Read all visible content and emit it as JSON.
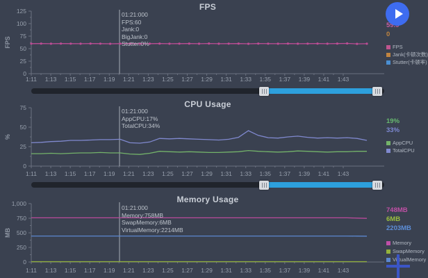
{
  "colors": {
    "background": "#3a4150",
    "title_text": "#c9ced6",
    "axis_text": "#98a0ad",
    "axis_line": "#6b7180",
    "crosshair": "#a7adb6",
    "tooltip_text": "#bfc5cd",
    "scrollbar_track": "#20242c",
    "scrollbar_fill": "#2da0dd",
    "scrollbar_handle": "#d7dadf",
    "play_button": "#3e6cf0",
    "plus_icon": "#3b55c6"
  },
  "icons": {
    "play": "play-icon",
    "plus": "plus-icon"
  },
  "x_tick_labels": [
    "1:11",
    "1:13",
    "1:15",
    "1:17",
    "1:19",
    "1:21",
    "1:23",
    "1:25",
    "1:27",
    "1:29",
    "1:31",
    "1:33",
    "1:35",
    "1:37",
    "1:39",
    "1:41",
    "1:43"
  ],
  "chart_data": [
    {
      "type": "line",
      "title": "FPS",
      "ylabel": "FPS",
      "ylim": [
        0,
        125
      ],
      "y_ticks": [
        {
          "v": 125,
          "label": "125"
        },
        {
          "v": 100,
          "label": "100"
        },
        {
          "v": 75,
          "label": "75"
        },
        {
          "v": 50,
          "label": "50"
        },
        {
          "v": 25,
          "label": "25"
        },
        {
          "v": 0,
          "label": "0"
        }
      ],
      "grid": false,
      "legend_position": "right",
      "tooltip_lines": [
        "01:21:000",
        "FPS:60",
        "Jank:0",
        "BigJank:0",
        "Stutter:0%"
      ],
      "current_values": [
        {
          "text": "59.9",
          "color": "#c75d9f"
        },
        {
          "text": "0",
          "color": "#c08440"
        }
      ],
      "legend": [
        {
          "label": "FPS",
          "color": "#c0558f"
        },
        {
          "label": "Jank(卡顿次数)",
          "color": "#c08440"
        },
        {
          "label": "Stutter(卡顿率)",
          "color": "#4a8fd2"
        }
      ],
      "series": [
        {
          "name": "FPS",
          "color": "#bc4d95",
          "markers": true,
          "values": [
            60,
            60.1,
            59.8,
            60.2,
            60,
            59.9,
            60.1,
            60,
            59.7,
            60,
            60.1,
            59.9,
            60,
            60.2,
            59.8,
            60,
            60.1,
            59.9,
            60.3,
            59.8,
            60,
            60.1,
            59.7,
            60.2,
            60,
            59.9,
            60.1,
            59.8,
            60,
            60.2,
            59.9,
            60.1,
            60.4,
            59.6,
            59.9
          ]
        }
      ]
    },
    {
      "type": "line",
      "title": "CPU Usage",
      "ylabel": "%",
      "ylim": [
        0,
        75
      ],
      "y_ticks": [
        {
          "v": 75,
          "label": "75"
        },
        {
          "v": 50,
          "label": "50"
        },
        {
          "v": 25,
          "label": "25"
        },
        {
          "v": 0,
          "label": "0"
        }
      ],
      "grid": false,
      "legend_position": "right",
      "tooltip_lines": [
        "01:21:000",
        "AppCPU:17%",
        "TotalCPU:34%"
      ],
      "current_values": [
        {
          "text": "19%",
          "color": "#67b96f"
        },
        {
          "text": "33%",
          "color": "#7d88d2"
        }
      ],
      "legend": [
        {
          "label": "AppCPU",
          "color": "#74b36a"
        },
        {
          "label": "TotalCPU",
          "color": "#8089cf"
        }
      ],
      "series": [
        {
          "name": "AppCPU",
          "color": "#74b36a",
          "markers": false,
          "values": [
            16,
            16,
            16.5,
            16,
            16.5,
            17,
            17,
            17.5,
            17,
            17,
            15.5,
            15,
            16.5,
            19,
            18.5,
            18,
            18.5,
            18,
            17.5,
            17.5,
            18,
            18.5,
            20,
            19,
            18.5,
            18,
            18.5,
            19.5,
            19,
            18.5,
            18,
            18.5,
            18.5,
            19,
            19
          ]
        },
        {
          "name": "TotalCPU",
          "color": "#8089cf",
          "markers": false,
          "values": [
            30,
            30.5,
            31.5,
            32,
            33,
            33,
            33.5,
            34,
            34,
            34.5,
            30,
            29.5,
            31,
            35.5,
            35,
            35.5,
            35,
            34.5,
            34,
            33.5,
            34.5,
            37,
            45.5,
            39.5,
            36.5,
            36,
            37.5,
            38.5,
            37,
            36,
            36.5,
            36,
            36.5,
            35.5,
            33
          ]
        }
      ]
    },
    {
      "type": "line",
      "title": "Memory Usage",
      "ylabel": "MB",
      "ylim": [
        0,
        1000
      ],
      "y_ticks": [
        {
          "v": 1000,
          "label": "1,000"
        },
        {
          "v": 750,
          "label": "750"
        },
        {
          "v": 500,
          "label": "500"
        },
        {
          "v": 250,
          "label": "250"
        },
        {
          "v": 0,
          "label": "0"
        }
      ],
      "grid": false,
      "legend_position": "right",
      "tooltip_lines": [
        "01:21:000",
        "Memory:758MB",
        "SwapMemory:6MB",
        "VirtualMemory:2214MB"
      ],
      "current_values": [
        {
          "text": "748MB",
          "color": "#c050a5"
        },
        {
          "text": "6MB",
          "color": "#9cbf3f"
        },
        {
          "text": "2203MB",
          "color": "#5d8ed8"
        }
      ],
      "legend": [
        {
          "label": "Memory",
          "color": "#bf4fa8"
        },
        {
          "label": "SwapMemory",
          "color": "#93b23c"
        },
        {
          "label": "VirtualMemory",
          "color": "#5b87cf"
        }
      ],
      "series": [
        {
          "name": "Memory",
          "color": "#b94a9b",
          "markers": false,
          "values": [
            757,
            757,
            757,
            757,
            757,
            757,
            757,
            757,
            757,
            757,
            757,
            757,
            757,
            757,
            757,
            757,
            757,
            757,
            757,
            757,
            757,
            757,
            757,
            757,
            757,
            757,
            757,
            757,
            757,
            757,
            757,
            757,
            757,
            752,
            748
          ]
        },
        {
          "name": "SwapMemory",
          "color": "#93b23c",
          "markers": false,
          "values": [
            6,
            6,
            6,
            6,
            6,
            6,
            6,
            6,
            6,
            6,
            6,
            6,
            6,
            6,
            6,
            6,
            6,
            6,
            6,
            6,
            6,
            6,
            6,
            6,
            6,
            6,
            6,
            6,
            6,
            6,
            6,
            6,
            6,
            6,
            6
          ]
        },
        {
          "name": "VirtualMemory",
          "color": "#5b87cf",
          "markers": false,
          "note": "actual value ~2203MB, drawn at reduced scale on MB axis",
          "values": [
            445,
            445,
            445,
            445,
            445,
            445,
            445,
            445,
            445,
            445,
            445,
            445,
            445,
            445,
            445,
            445,
            445,
            445,
            445,
            445,
            445,
            445,
            445,
            445,
            445,
            445,
            445,
            445,
            445,
            445,
            445,
            445,
            445,
            444,
            443
          ]
        }
      ]
    }
  ]
}
